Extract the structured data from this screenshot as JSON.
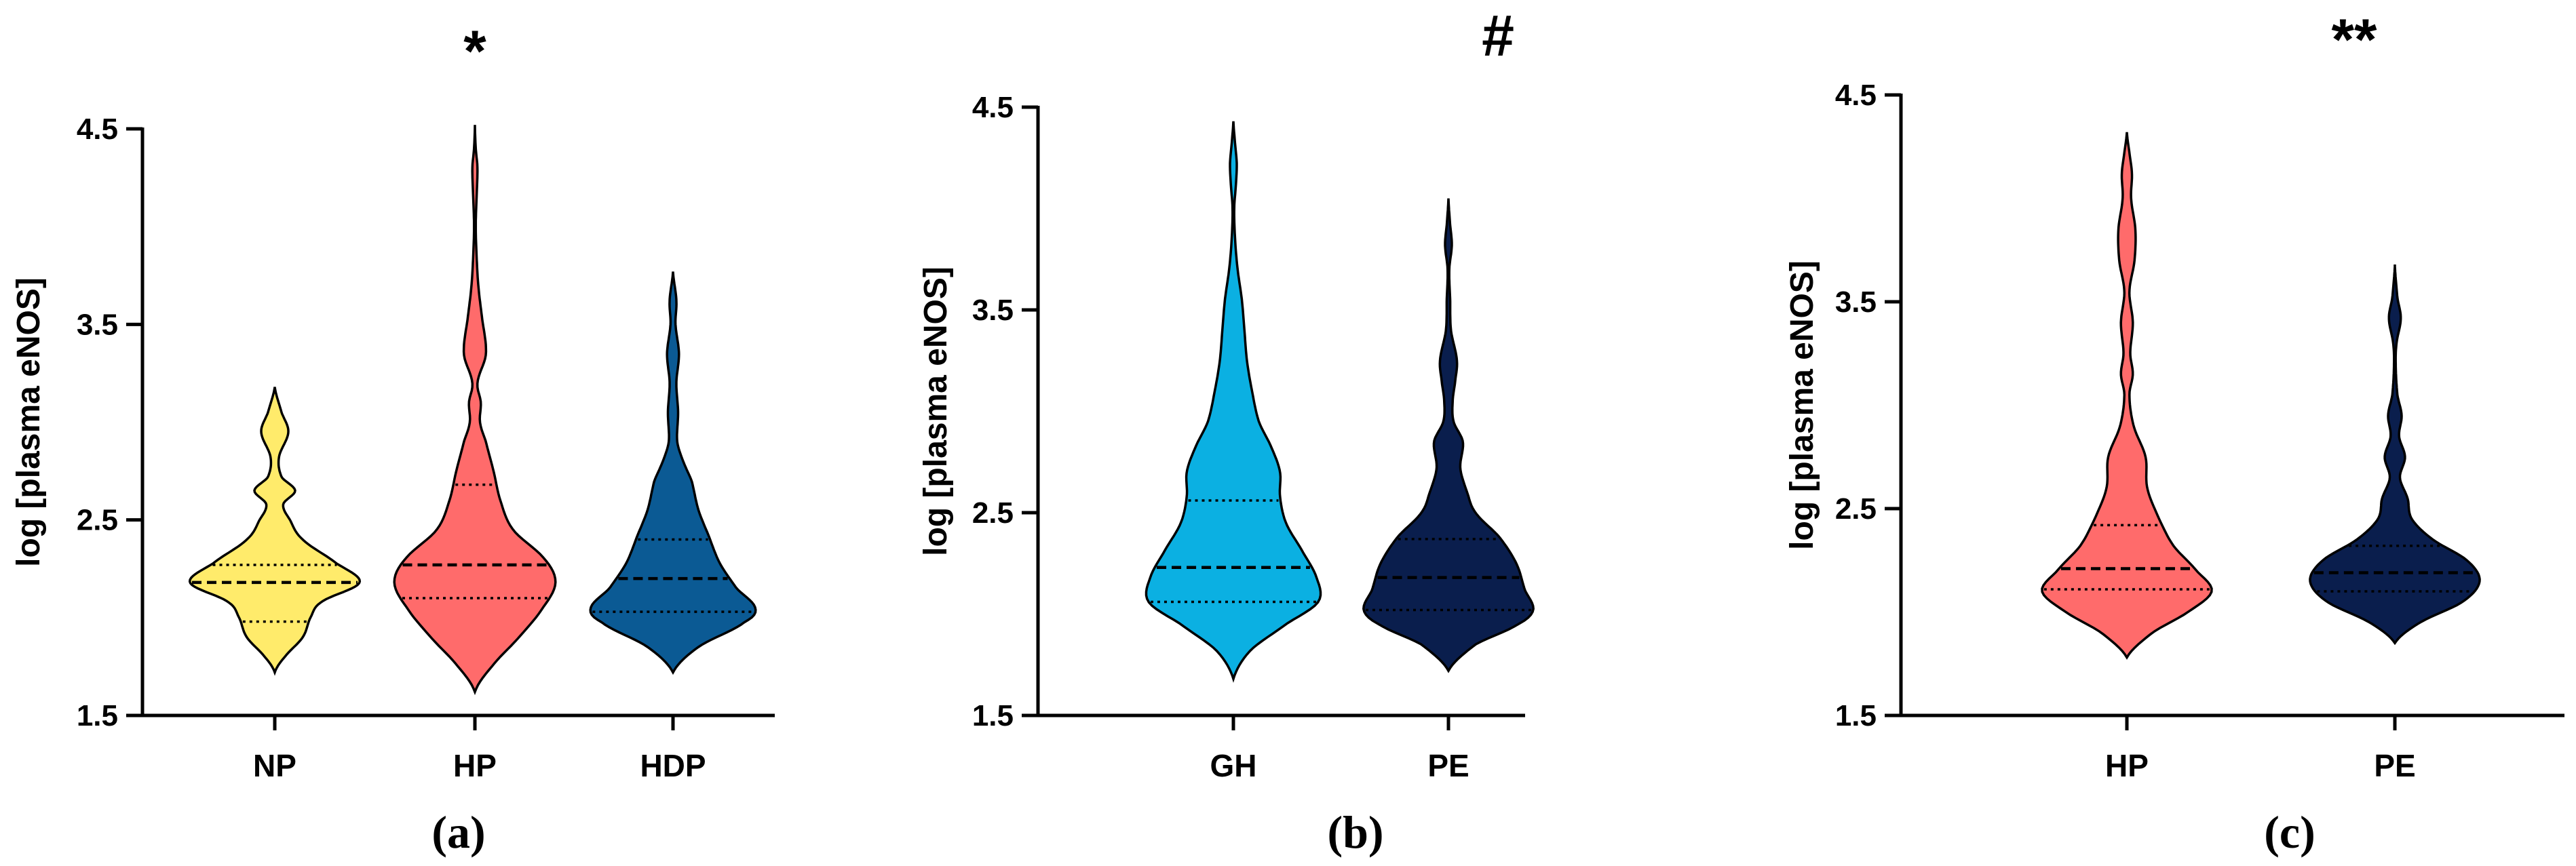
{
  "chart_data": [
    {
      "type": "violin",
      "panel_label": "(a)",
      "significance": "*",
      "ylabel": "log [plasma eNOS]",
      "ylim": [
        1.5,
        4.5
      ],
      "yticks": [
        "1.5",
        "2.5",
        "3.5",
        "4.5"
      ],
      "categories": [
        "NP",
        "HP",
        "HDP"
      ],
      "violins": [
        {
          "name": "NP",
          "color": "#FFEB6B",
          "min": 1.72,
          "max": 3.18,
          "median": 2.18,
          "q1": 1.98,
          "q3": 2.27,
          "profile": [
            [
              1.72,
              0.0
            ],
            [
              1.8,
              0.12
            ],
            [
              1.9,
              0.33
            ],
            [
              2.0,
              0.42
            ],
            [
              2.08,
              0.55
            ],
            [
              2.18,
              1.0
            ],
            [
              2.28,
              0.72
            ],
            [
              2.4,
              0.33
            ],
            [
              2.5,
              0.18
            ],
            [
              2.58,
              0.1
            ],
            [
              2.65,
              0.24
            ],
            [
              2.72,
              0.08
            ],
            [
              2.82,
              0.05
            ],
            [
              2.95,
              0.16
            ],
            [
              3.05,
              0.08
            ],
            [
              3.18,
              0.0
            ]
          ]
        },
        {
          "name": "HP",
          "color": "#FF6B6B",
          "min": 1.62,
          "max": 4.52,
          "median": 2.27,
          "q1": 2.1,
          "q3": 2.68,
          "profile": [
            [
              1.62,
              0.0
            ],
            [
              1.75,
              0.2
            ],
            [
              1.9,
              0.52
            ],
            [
              2.05,
              0.8
            ],
            [
              2.18,
              0.95
            ],
            [
              2.3,
              0.82
            ],
            [
              2.45,
              0.45
            ],
            [
              2.6,
              0.3
            ],
            [
              2.75,
              0.22
            ],
            [
              2.9,
              0.13
            ],
            [
              3.0,
              0.06
            ],
            [
              3.1,
              0.07
            ],
            [
              3.2,
              0.03
            ],
            [
              3.35,
              0.13
            ],
            [
              3.55,
              0.08
            ],
            [
              3.7,
              0.04
            ],
            [
              3.85,
              0.02
            ],
            [
              4.0,
              0.01
            ],
            [
              4.15,
              0.02
            ],
            [
              4.3,
              0.03
            ],
            [
              4.4,
              0.01
            ],
            [
              4.52,
              0.0
            ]
          ]
        },
        {
          "name": "HDP",
          "color": "#0B5A94",
          "min": 1.72,
          "max": 3.77,
          "median": 2.2,
          "q1": 2.03,
          "q3": 2.4,
          "profile": [
            [
              1.72,
              0.0
            ],
            [
              1.85,
              0.3
            ],
            [
              1.98,
              0.85
            ],
            [
              2.05,
              0.97
            ],
            [
              2.15,
              0.75
            ],
            [
              2.28,
              0.55
            ],
            [
              2.42,
              0.42
            ],
            [
              2.55,
              0.3
            ],
            [
              2.7,
              0.22
            ],
            [
              2.8,
              0.12
            ],
            [
              2.9,
              0.05
            ],
            [
              3.05,
              0.06
            ],
            [
              3.2,
              0.04
            ],
            [
              3.35,
              0.07
            ],
            [
              3.5,
              0.03
            ],
            [
              3.62,
              0.04
            ],
            [
              3.77,
              0.0
            ]
          ]
        }
      ]
    },
    {
      "type": "violin",
      "panel_label": "(b)",
      "significance": "#",
      "ylabel": "log [plasma eNOS]",
      "ylim": [
        1.5,
        4.5
      ],
      "yticks": [
        "1.5",
        "2.5",
        "3.5",
        "4.5"
      ],
      "categories": [
        "GH",
        "PE"
      ],
      "violins": [
        {
          "name": "GH",
          "color": "#0BB0E2",
          "min": 1.68,
          "max": 4.43,
          "median": 2.23,
          "q1": 2.06,
          "q3": 2.56,
          "profile": [
            [
              1.68,
              0.0
            ],
            [
              1.82,
              0.2
            ],
            [
              1.95,
              0.62
            ],
            [
              2.06,
              1.0
            ],
            [
              2.18,
              0.98
            ],
            [
              2.32,
              0.8
            ],
            [
              2.45,
              0.62
            ],
            [
              2.58,
              0.55
            ],
            [
              2.7,
              0.55
            ],
            [
              2.82,
              0.45
            ],
            [
              2.95,
              0.3
            ],
            [
              3.1,
              0.22
            ],
            [
              3.25,
              0.16
            ],
            [
              3.4,
              0.13
            ],
            [
              3.55,
              0.1
            ],
            [
              3.7,
              0.05
            ],
            [
              3.85,
              0.02
            ],
            [
              4.0,
              0.01
            ],
            [
              4.12,
              0.03
            ],
            [
              4.22,
              0.04
            ],
            [
              4.32,
              0.02
            ],
            [
              4.43,
              0.0
            ]
          ]
        },
        {
          "name": "PE",
          "color": "#0A1E4D",
          "min": 1.72,
          "max": 4.05,
          "median": 2.18,
          "q1": 2.02,
          "q3": 2.37,
          "profile": [
            [
              1.72,
              0.0
            ],
            [
              1.85,
              0.32
            ],
            [
              1.95,
              0.82
            ],
            [
              2.02,
              1.0
            ],
            [
              2.12,
              0.9
            ],
            [
              2.25,
              0.8
            ],
            [
              2.38,
              0.6
            ],
            [
              2.5,
              0.32
            ],
            [
              2.6,
              0.22
            ],
            [
              2.72,
              0.14
            ],
            [
              2.85,
              0.17
            ],
            [
              2.95,
              0.06
            ],
            [
              3.05,
              0.05
            ],
            [
              3.15,
              0.08
            ],
            [
              3.25,
              0.1
            ],
            [
              3.4,
              0.03
            ],
            [
              3.55,
              0.02
            ],
            [
              3.7,
              0.01
            ],
            [
              3.82,
              0.04
            ],
            [
              3.92,
              0.02
            ],
            [
              4.05,
              0.0
            ]
          ]
        }
      ]
    },
    {
      "type": "violin",
      "panel_label": "(c)",
      "significance": "**",
      "ylabel": "log [plasma eNOS]",
      "ylim": [
        1.5,
        4.5
      ],
      "yticks": [
        "1.5",
        "2.5",
        "3.5",
        "4.5"
      ],
      "categories": [
        "HP",
        "PE"
      ],
      "violins": [
        {
          "name": "HP",
          "color": "#FF6B6B",
          "min": 1.78,
          "max": 4.32,
          "median": 2.21,
          "q1": 2.11,
          "q3": 2.42,
          "profile": [
            [
              1.78,
              0.0
            ],
            [
              1.9,
              0.3
            ],
            [
              2.0,
              0.72
            ],
            [
              2.1,
              1.0
            ],
            [
              2.2,
              0.82
            ],
            [
              2.32,
              0.55
            ],
            [
              2.45,
              0.38
            ],
            [
              2.6,
              0.24
            ],
            [
              2.75,
              0.22
            ],
            [
              2.9,
              0.08
            ],
            [
              3.05,
              0.03
            ],
            [
              3.15,
              0.07
            ],
            [
              3.25,
              0.04
            ],
            [
              3.4,
              0.07
            ],
            [
              3.55,
              0.03
            ],
            [
              3.7,
              0.09
            ],
            [
              3.85,
              0.1
            ],
            [
              4.0,
              0.05
            ],
            [
              4.12,
              0.06
            ],
            [
              4.22,
              0.03
            ],
            [
              4.32,
              0.0
            ]
          ]
        },
        {
          "name": "PE",
          "color": "#0A1E4D",
          "min": 1.85,
          "max": 3.68,
          "median": 2.19,
          "q1": 2.1,
          "q3": 2.32,
          "profile": [
            [
              1.85,
              0.0
            ],
            [
              1.95,
              0.3
            ],
            [
              2.05,
              0.8
            ],
            [
              2.15,
              1.0
            ],
            [
              2.25,
              0.85
            ],
            [
              2.35,
              0.45
            ],
            [
              2.45,
              0.2
            ],
            [
              2.55,
              0.15
            ],
            [
              2.65,
              0.06
            ],
            [
              2.75,
              0.12
            ],
            [
              2.85,
              0.05
            ],
            [
              2.95,
              0.08
            ],
            [
              3.05,
              0.03
            ],
            [
              3.2,
              0.01
            ],
            [
              3.3,
              0.02
            ],
            [
              3.42,
              0.07
            ],
            [
              3.52,
              0.03
            ],
            [
              3.68,
              0.0
            ]
          ]
        }
      ]
    }
  ]
}
